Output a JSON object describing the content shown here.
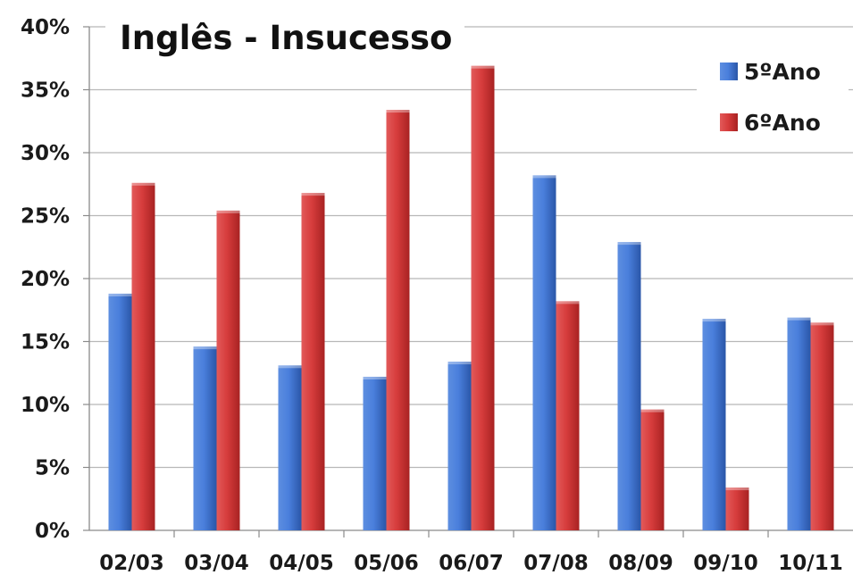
{
  "chart_data": {
    "type": "bar",
    "title": "Inglês - Insucesso",
    "categories": [
      "02/03",
      "03/04",
      "04/05",
      "05/06",
      "06/07",
      "07/08",
      "08/09",
      "09/10",
      "10/11"
    ],
    "series": [
      {
        "name": "5ºAno",
        "color": "#3b6fd0",
        "values": [
          18.8,
          14.6,
          13.1,
          12.2,
          13.4,
          28.2,
          22.9,
          16.8,
          16.9
        ]
      },
      {
        "name": "6ºAno",
        "color": "#d23a3a",
        "values": [
          27.6,
          25.4,
          26.8,
          33.4,
          36.9,
          18.2,
          9.6,
          3.4,
          16.5
        ]
      }
    ],
    "ylim": [
      0,
      40
    ],
    "yticks": [
      "0%",
      "5%",
      "10%",
      "15%",
      "20%",
      "25%",
      "30%",
      "35%",
      "40%"
    ],
    "grid": true,
    "legend_position": "top-right",
    "xlabel": "",
    "ylabel": ""
  }
}
